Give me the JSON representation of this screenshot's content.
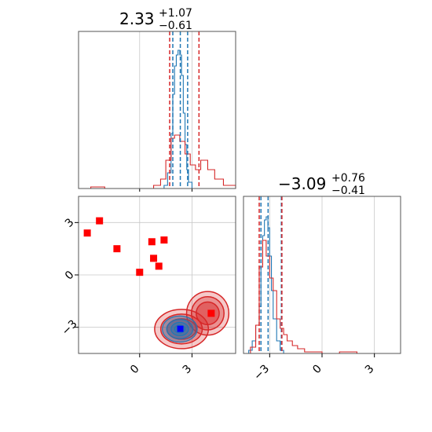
{
  "colors": {
    "primary": "#1f77b4",
    "secondary": "#d62728",
    "marker_square": "#ff0000",
    "marker_truth": "#0000ff",
    "grid": "#c8c8c8",
    "axis": "#555555"
  },
  "chart_data": [
    {
      "type": "histogram",
      "panel": "upper-left",
      "title": {
        "value": "2.33",
        "upper": "+1.07",
        "lower": "−0.61"
      },
      "xlim": [
        -3.5,
        5.5
      ],
      "xticks": [
        0,
        3
      ],
      "series": [
        {
          "color": "#1f77b4",
          "bins_x": [
            1.2,
            1.4,
            1.6,
            1.8,
            1.9,
            2.0,
            2.1,
            2.2,
            2.3,
            2.4,
            2.5,
            2.6,
            2.7,
            2.8,
            3.0
          ],
          "height": [
            0.0,
            0.02,
            0.1,
            0.35,
            0.6,
            0.78,
            0.85,
            0.88,
            0.85,
            0.72,
            0.48,
            0.28,
            0.12,
            0.04,
            0.0
          ]
        },
        {
          "color": "#d62728",
          "bins_x": [
            -3.5,
            -2.8,
            -2.0,
            -1.0,
            0.0,
            0.8,
            1.2,
            1.5,
            1.8,
            2.0,
            2.3,
            2.6,
            2.9,
            3.2,
            3.5,
            3.9,
            4.3,
            4.8,
            5.5
          ],
          "height": [
            0.0,
            0.01,
            0.0,
            0.0,
            0.0,
            0.02,
            0.06,
            0.18,
            0.32,
            0.34,
            0.3,
            0.22,
            0.15,
            0.12,
            0.18,
            0.12,
            0.06,
            0.02,
            0.0
          ]
        }
      ],
      "quantiles": [
        {
          "color": "#1f77b4",
          "x": [
            1.9,
            2.33,
            2.75
          ]
        },
        {
          "color": "#d62728",
          "x": [
            1.72,
            3.4
          ]
        }
      ]
    },
    {
      "type": "contour",
      "panel": "lower-left",
      "xlim": [
        -3.5,
        5.5
      ],
      "ylim": [
        -4.5,
        4.5
      ],
      "xticks": [
        0,
        3
      ],
      "yticks": [
        -3,
        0,
        3
      ],
      "yticklabels": [
        "−3",
        "0",
        "3"
      ],
      "squares": [
        [
          -3.0,
          2.4
        ],
        [
          -2.3,
          3.1
        ],
        [
          -1.3,
          1.5
        ],
        [
          0.0,
          0.15
        ],
        [
          0.7,
          1.9
        ],
        [
          1.4,
          2.0
        ],
        [
          0.8,
          0.95
        ],
        [
          1.1,
          0.5
        ],
        [
          4.1,
          -2.2
        ]
      ],
      "truth": [
        2.33,
        -3.09
      ],
      "blob_primary": {
        "cx": 2.3,
        "cy": -3.1,
        "rx": [
          1.0,
          0.75,
          0.5,
          0.3
        ],
        "ry": [
          0.75,
          0.55,
          0.38,
          0.22
        ]
      },
      "blob_secondary": {
        "center": [
          2.8,
          -2.7
        ]
      }
    },
    {
      "type": "histogram",
      "panel": "lower-right",
      "title": {
        "value": "−3.09",
        "upper": "+0.76",
        "lower": "−0.41"
      },
      "xlim": [
        -4.5,
        4.5
      ],
      "xticks": [
        -3,
        0,
        3
      ],
      "xticklabels": [
        "−3",
        "0",
        "3"
      ],
      "series": [
        {
          "color": "#1f77b4",
          "bins_x": [
            -4.5,
            -4.2,
            -4.0,
            -3.8,
            -3.6,
            -3.5,
            -3.4,
            -3.3,
            -3.2,
            -3.1,
            -3.0,
            -2.9,
            -2.8,
            -2.6,
            -2.4,
            -2.2
          ],
          "height": [
            0.0,
            0.02,
            0.08,
            0.18,
            0.3,
            0.55,
            0.75,
            0.85,
            0.87,
            0.8,
            0.62,
            0.4,
            0.22,
            0.08,
            0.02,
            0.0
          ]
        },
        {
          "color": "#d62728",
          "bins_x": [
            -4.5,
            -4.1,
            -3.8,
            -3.6,
            -3.4,
            -3.2,
            -3.0,
            -2.8,
            -2.6,
            -2.4,
            -2.2,
            -2.0,
            -1.7,
            -1.4,
            -1.0,
            0.0,
            1.0,
            2.0,
            4.5
          ],
          "height": [
            0.0,
            0.04,
            0.18,
            0.55,
            0.72,
            0.62,
            0.48,
            0.4,
            0.22,
            0.16,
            0.12,
            0.08,
            0.05,
            0.03,
            0.01,
            0.0,
            0.01,
            0.0,
            0.0
          ]
        }
      ],
      "quantiles": [
        {
          "color": "#1f77b4",
          "x": [
            -3.5,
            -3.09,
            -2.33
          ]
        },
        {
          "color": "#d62728",
          "x": [
            -3.6,
            -2.3
          ]
        }
      ]
    }
  ]
}
